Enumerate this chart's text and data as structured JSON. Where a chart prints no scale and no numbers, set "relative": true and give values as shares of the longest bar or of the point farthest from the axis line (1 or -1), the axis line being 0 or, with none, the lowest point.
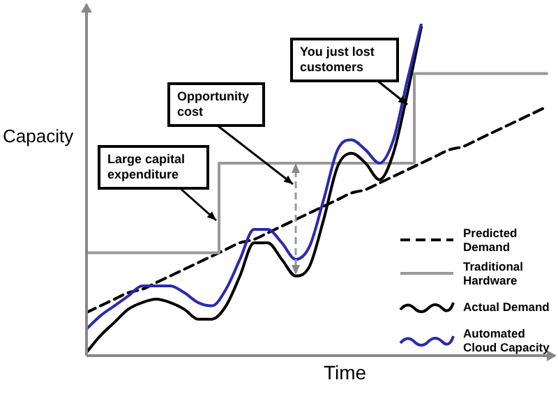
{
  "chart_data": {
    "type": "line",
    "relative": true,
    "xlabel": "Time",
    "ylabel": "Capacity",
    "marker": "none",
    "legend": "bottom right",
    "categories": [
      null,
      null,
      null,
      null,
      null,
      null,
      null,
      null,
      null,
      null,
      null,
      null,
      null,
      null,
      null,
      null,
      null,
      null,
      null,
      null,
      null,
      null,
      null,
      null,
      null,
      null,
      null,
      null,
      null,
      null,
      null,
      null,
      null,
      null
    ],
    "series": [
      {
        "name": "Predicted Demand",
        "color": "#000000",
        "line_style": "dashed",
        "values": [
          0.13,
          0.15,
          0.17,
          0.19,
          0.2,
          0.22,
          0.24,
          0.26,
          0.28,
          0.3,
          0.32,
          0.34,
          0.35,
          0.37,
          0.39,
          0.41,
          0.43,
          0.45,
          0.47,
          0.49,
          0.5,
          0.52,
          0.54,
          0.56,
          0.58,
          0.6,
          0.62,
          0.63,
          0.65,
          0.67,
          0.69,
          0.71,
          0.73,
          0.75
        ]
      },
      {
        "name": "Traditional Hardware",
        "type": "step",
        "color": "#999999",
        "line_style": "solid",
        "values": [
          0.31,
          0.31,
          0.31,
          0.31,
          0.31,
          0.31,
          0.31,
          0.31,
          0.31,
          0.31,
          0.58,
          0.58,
          0.58,
          0.58,
          0.58,
          0.58,
          0.58,
          0.58,
          0.58,
          0.58,
          0.58,
          0.58,
          0.58,
          0.58,
          0.85,
          0.85,
          0.85,
          0.85,
          0.85,
          0.85,
          0.85,
          0.85,
          0.85,
          0.85
        ]
      },
      {
        "name": "Actual Demand",
        "color": "#000000",
        "line_style": "solid",
        "values": [
          0.01,
          0.06,
          0.1,
          0.14,
          0.16,
          0.17,
          0.16,
          0.14,
          0.11,
          0.11,
          0.15,
          0.24,
          0.34,
          0.34,
          0.29,
          0.24,
          0.27,
          0.41,
          0.57,
          0.61,
          0.58,
          0.53,
          0.61,
          0.79,
          0.99,
          null,
          null,
          null,
          null,
          null,
          null,
          null,
          null,
          null
        ]
      },
      {
        "name": "Automated Cloud Capacity",
        "color": "#2a2ab0",
        "line_style": "solid",
        "values": [
          0.08,
          0.12,
          0.15,
          0.18,
          0.21,
          0.21,
          0.21,
          0.19,
          0.16,
          0.15,
          0.2,
          0.29,
          0.38,
          0.38,
          0.34,
          0.29,
          0.33,
          0.47,
          0.62,
          0.65,
          0.62,
          0.58,
          0.65,
          0.83,
          1.0,
          null,
          null,
          null,
          null,
          null,
          null,
          null,
          null,
          null
        ]
      }
    ],
    "annotations": [
      "Large capital expenditure",
      "Opportunity cost",
      "You just lost customers"
    ]
  }
}
